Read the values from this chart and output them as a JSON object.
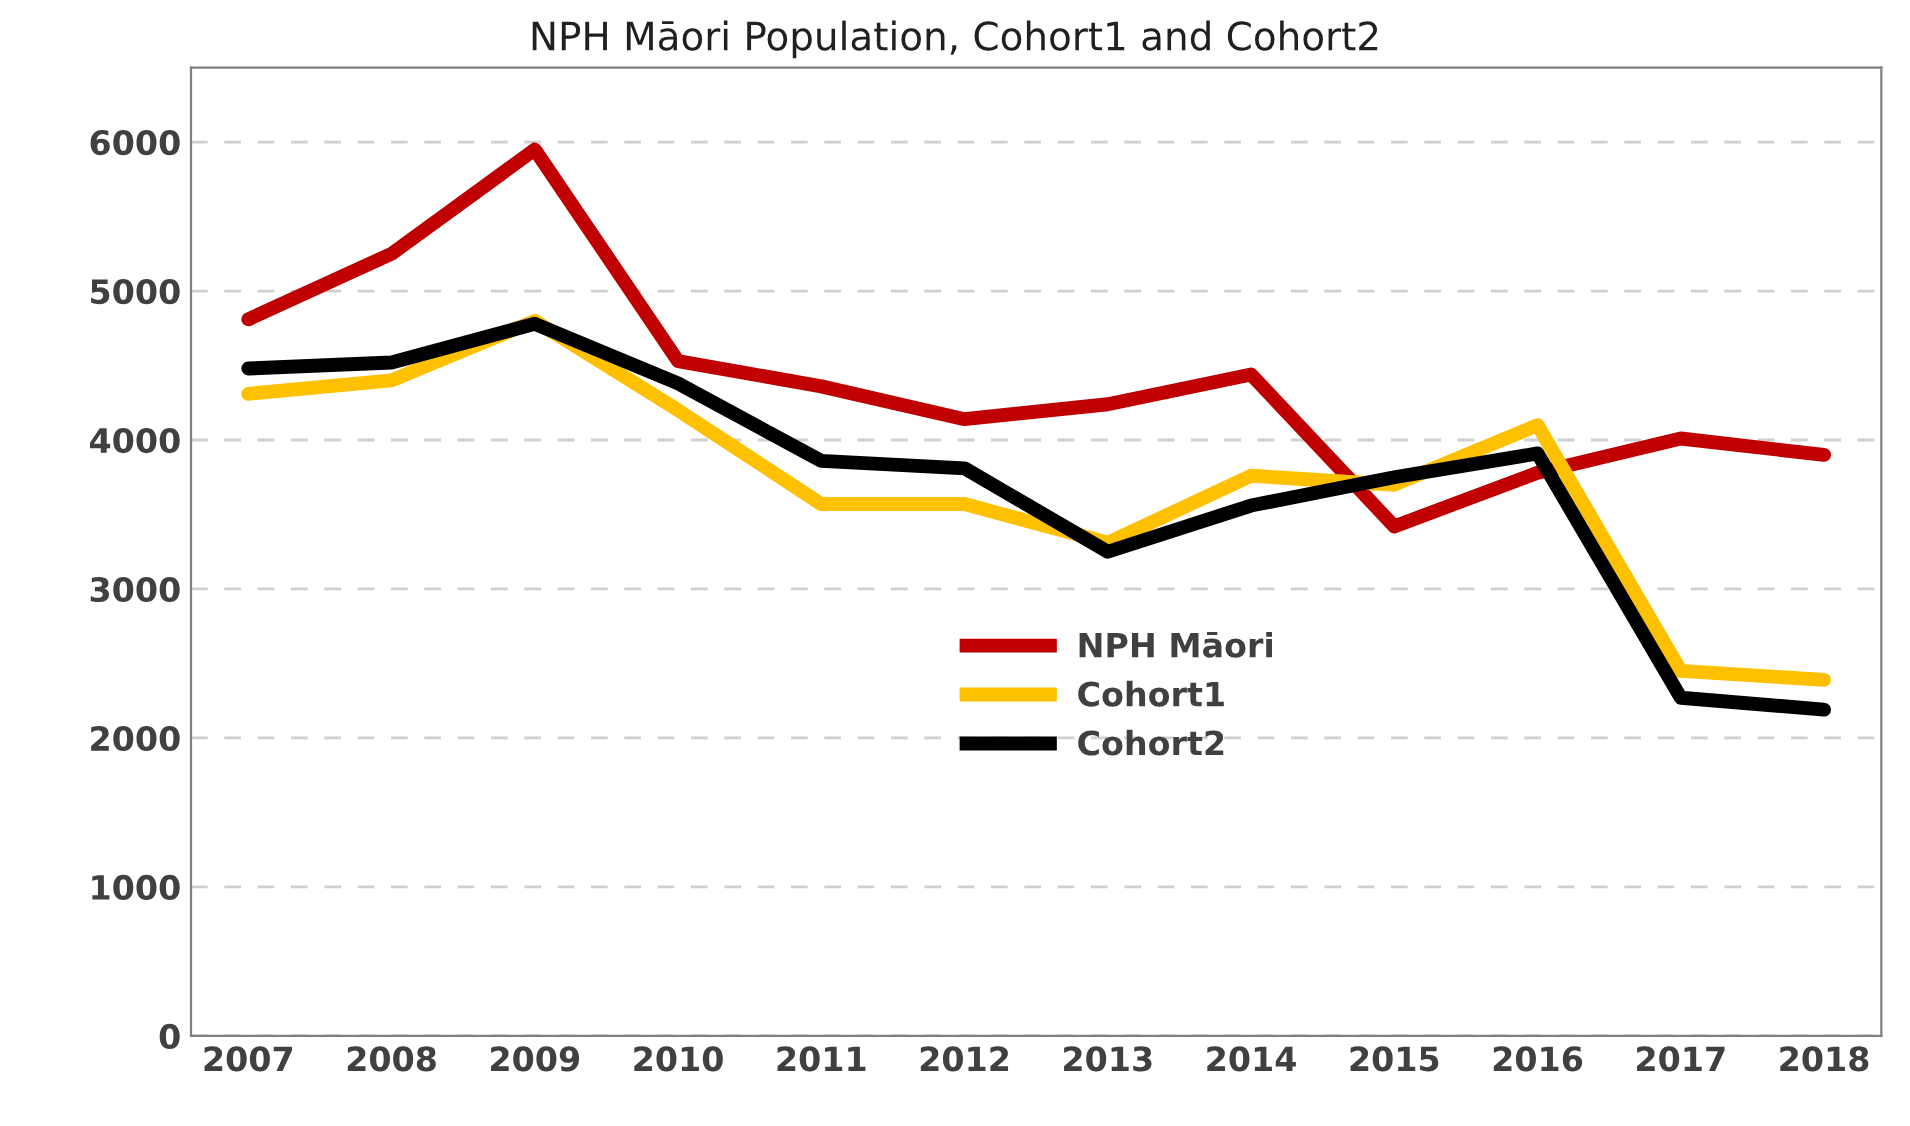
{
  "chart_data": {
    "type": "line",
    "title": "NPH Māori Population, Cohort1 and Cohort2",
    "categories": [
      "2007",
      "2008",
      "2009",
      "2010",
      "2011",
      "2012",
      "2013",
      "2014",
      "2015",
      "2016",
      "2017",
      "2018"
    ],
    "series": [
      {
        "name": "NPH Māori",
        "color": "#c00000",
        "values": [
          4810,
          5250,
          5950,
          4530,
          4360,
          4140,
          4240,
          4440,
          3420,
          3780,
          4010,
          3900
        ]
      },
      {
        "name": "Cohort1",
        "color": "#ffc000",
        "values": [
          4310,
          4400,
          4800,
          4200,
          3570,
          3570,
          3310,
          3760,
          3700,
          4100,
          2450,
          2390
        ]
      },
      {
        "name": "Cohort2",
        "color": "#000000",
        "values": [
          4480,
          4520,
          4780,
          4380,
          3860,
          3810,
          3250,
          3560,
          3750,
          3910,
          2270,
          2190
        ]
      }
    ],
    "ylim": [
      0,
      6500
    ],
    "yticks": [
      0,
      1000,
      2000,
      3000,
      4000,
      5000,
      6000
    ],
    "grid": "y",
    "legend": "center",
    "line_style": "solid",
    "marker": "none"
  }
}
